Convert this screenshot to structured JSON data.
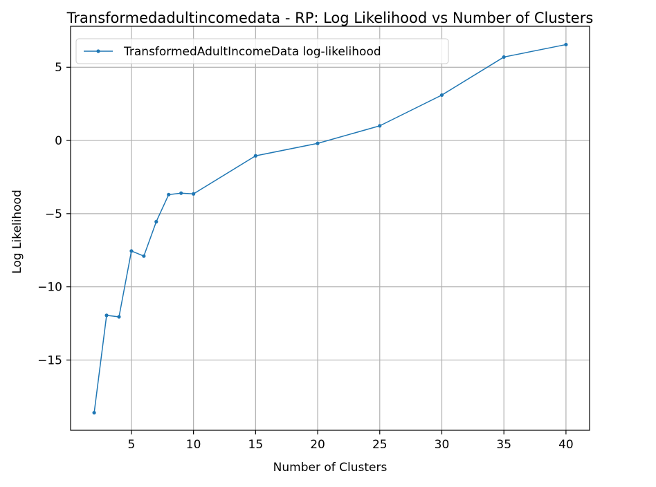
{
  "chart_data": {
    "type": "line",
    "title": "Transformedadultincomedata - RP: Log Likelihood vs Number of Clusters",
    "xlabel": "Number of Clusters",
    "ylabel": "Log Likelihood",
    "xlim": [
      0.1,
      41.9
    ],
    "ylim": [
      -19.8,
      7.8
    ],
    "xticks": [
      {
        "value": 5,
        "label": "5"
      },
      {
        "value": 10,
        "label": "10"
      },
      {
        "value": 15,
        "label": "15"
      },
      {
        "value": 20,
        "label": "20"
      },
      {
        "value": 25,
        "label": "25"
      },
      {
        "value": 30,
        "label": "30"
      },
      {
        "value": 35,
        "label": "35"
      },
      {
        "value": 40,
        "label": "40"
      }
    ],
    "yticks": [
      {
        "value": 5,
        "label": "5"
      },
      {
        "value": 0,
        "label": "0"
      },
      {
        "value": -5,
        "label": "−5"
      },
      {
        "value": -10,
        "label": "−10"
      },
      {
        "value": -15,
        "label": "−15"
      }
    ],
    "grid": true,
    "legend_position": "upper-left",
    "series": [
      {
        "name": "TransformedAdultIncomeData log-likelihood",
        "color": "#1f77b4",
        "marker": "dot",
        "x": [
          2,
          3,
          4,
          5,
          6,
          7,
          8,
          9,
          10,
          15,
          20,
          25,
          30,
          35,
          40
        ],
        "y": [
          -18.6,
          -11.95,
          -12.05,
          -7.55,
          -7.9,
          -5.55,
          -3.7,
          -3.6,
          -3.65,
          -1.05,
          -0.2,
          1.0,
          3.1,
          5.7,
          6.55
        ]
      }
    ]
  }
}
